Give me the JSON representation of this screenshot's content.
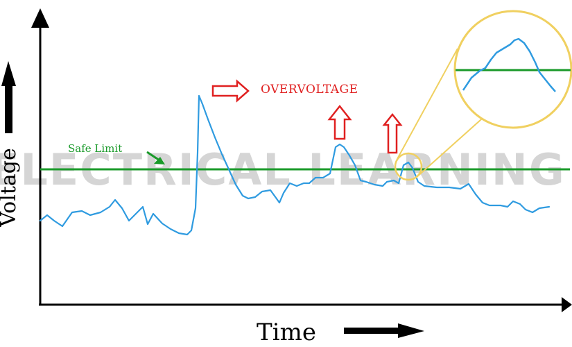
{
  "watermark": "ELECTRICAL LEARNING",
  "axes": {
    "x_label": "Time",
    "y_label": "Voltage"
  },
  "annotations": {
    "safe_limit": "Safe Limit",
    "overvoltage": "OVERVOLTAGE"
  },
  "colors": {
    "signal": "#2f9be0",
    "safe_limit": "#1a9a2a",
    "overvoltage": "#e02020",
    "zoom": "#f0d060",
    "axis": "#000000",
    "watermark": "#c8c8c8"
  }
}
